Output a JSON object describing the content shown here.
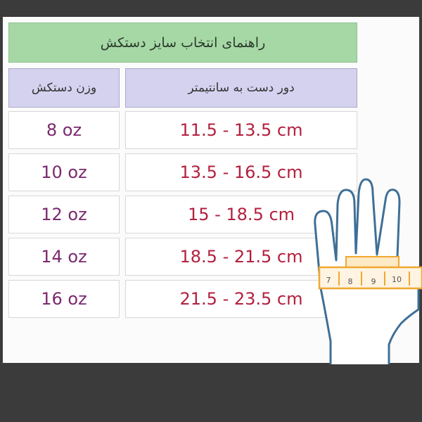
{
  "title": "راهنمای انتخاب سایز دستکش",
  "headers": {
    "weight": "وزن دستکش",
    "circumference": "دور دست به سانتیمتر"
  },
  "rows": [
    {
      "weight": "8 oz",
      "range": "11.5 - 13.5 cm"
    },
    {
      "weight": "10 oz",
      "range": "13.5 - 16.5 cm"
    },
    {
      "weight": "12 oz",
      "range": "15 - 18.5 cm"
    },
    {
      "weight": "14 oz",
      "range": "18.5 - 21.5 cm"
    },
    {
      "weight": "16 oz",
      "range": "21.5 - 23.5 cm"
    }
  ],
  "tape_labels": [
    "7",
    "8",
    "9",
    "10"
  ],
  "colors": {
    "title_bg": "#a6d8a6",
    "header_bg": "#d4d2ef",
    "weight_text": "#7b2a6e",
    "range_text": "#b3203f",
    "hand_outline": "#3f6f96",
    "tape": "#f0a830"
  }
}
